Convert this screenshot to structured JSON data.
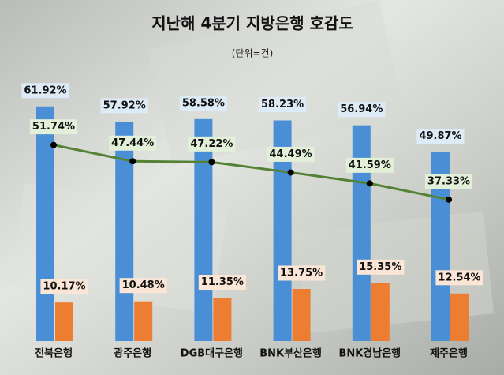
{
  "chart_data": {
    "type": "bar-line",
    "title": "지난해 4분기 지방은행 호감도",
    "subtitle": "(단위=건)",
    "categories": [
      "전북은행",
      "광주은행",
      "DGB대구은행",
      "BNK부산은행",
      "BNK경남은행",
      "제주은행"
    ],
    "series": [
      {
        "type": "bar",
        "color": "#4a8fd6",
        "label_bg": "#ddebf7",
        "values": [
          61.92,
          57.92,
          58.58,
          58.23,
          56.94,
          49.87
        ],
        "value_labels": [
          "61.92%",
          "57.92%",
          "58.58%",
          "58.23%",
          "56.94%",
          "49.87%"
        ]
      },
      {
        "type": "bar",
        "color": "#ed7d31",
        "label_bg": "#fbe5d6",
        "values": [
          10.17,
          10.48,
          11.35,
          13.75,
          15.35,
          12.54
        ],
        "value_labels": [
          "10.17%",
          "10.48%",
          "11.35%",
          "13.75%",
          "15.35%",
          "12.54%"
        ]
      },
      {
        "type": "line",
        "color": "#548235",
        "label_bg": "#e2f0d9",
        "values": [
          51.74,
          47.44,
          47.22,
          44.49,
          41.59,
          37.33
        ],
        "value_labels": [
          "51.74%",
          "47.44%",
          "47.22%",
          "44.49%",
          "41.59%",
          "37.33%"
        ]
      }
    ]
  }
}
